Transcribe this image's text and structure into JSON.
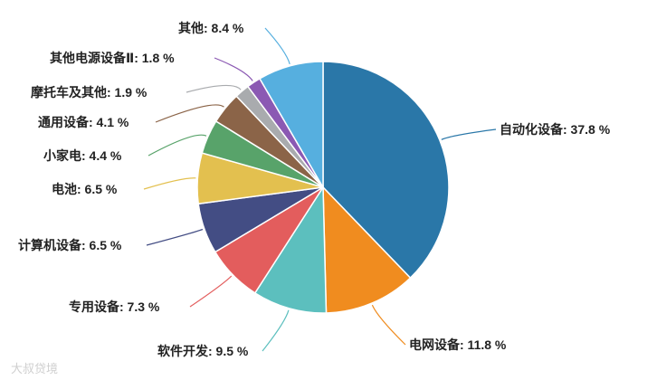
{
  "chart_data": {
    "type": "pie",
    "unit": "%",
    "slices": [
      {
        "label": "自动化设备",
        "value": 37.8,
        "display": "自动化设备: 37.8 %",
        "color": "#2A77A8"
      },
      {
        "label": "电网设备",
        "value": 11.8,
        "display": "电网设备: 11.8 %",
        "color": "#F08C1F"
      },
      {
        "label": "软件开发",
        "value": 9.5,
        "display": "软件开发: 9.5 %",
        "color": "#5CBFBE"
      },
      {
        "label": "专用设备",
        "value": 7.3,
        "display": "专用设备: 7.3 %",
        "color": "#E35D5D"
      },
      {
        "label": "计算机设备",
        "value": 6.5,
        "display": "计算机设备: 6.5 %",
        "color": "#434D84"
      },
      {
        "label": "电池",
        "value": 6.5,
        "display": "电池: 6.5 %",
        "color": "#E3C04F"
      },
      {
        "label": "小家电",
        "value": 4.4,
        "display": "小家电: 4.4 %",
        "color": "#58A36A"
      },
      {
        "label": "通用设备",
        "value": 4.1,
        "display": "通用设备: 4.1 %",
        "color": "#8B6448"
      },
      {
        "label": "摩托车及其他",
        "value": 1.9,
        "display": "摩托车及其他: 1.9 %",
        "color": "#A9ABAE"
      },
      {
        "label": "其他电源设备Ⅱ",
        "value": 1.8,
        "display": "其他电源设备Ⅱ: 1.8 %",
        "color": "#8B59B3"
      },
      {
        "label": "其他",
        "value": 8.4,
        "display": "其他: 8.4 %",
        "color": "#56AFDF"
      }
    ]
  },
  "watermark": "大叔贷境"
}
